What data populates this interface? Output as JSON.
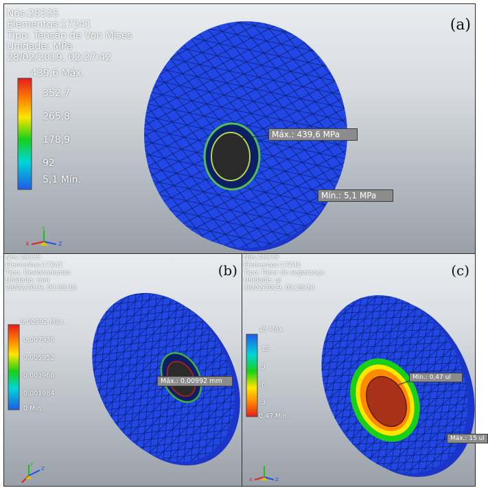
{
  "colors": {
    "mesh_blue": "#1f3fdc",
    "legend_gradient": [
      "#e81c1c",
      "#ff8a00",
      "#ffe600",
      "#18d018",
      "#00d6d6",
      "#1f5be8"
    ]
  },
  "panels": [
    {
      "tag": "(a)",
      "info": [
        "Nós:28335",
        "Elementos:17241",
        "Tipo: Tensão de Von Mises",
        "Unidade: MPa",
        "28/02/2019, 02:27:42"
      ],
      "legend": [
        "439,6 Máx.",
        "352,7",
        "265,8",
        "178,9",
        "92",
        "5,1 Mín."
      ],
      "callouts": {
        "max": "Máx.: 439,6 MPa",
        "min": "Mín.: 5,1 MPa"
      },
      "icons": [
        "triad-icon"
      ]
    },
    {
      "tag": "(b)",
      "info": [
        "Nós:28335",
        "Elementos:17241",
        "Tipo: Deslocamento",
        "Unidade: mm",
        "28/02/2019, 02:28:18"
      ],
      "legend": [
        "0,00992 Máx.",
        "0,007936",
        "0,005952",
        "0,003968",
        "0,001984",
        "0 Mín."
      ],
      "callouts": {
        "max": "Máx.: 0,00992 mm"
      },
      "icons": [
        "triad-icon"
      ]
    },
    {
      "tag": "(c)",
      "info": [
        "Nós:28335",
        "Elementos:17241",
        "Tipo: Fator de segurança",
        "Unidade: ul",
        "28/02/2019, 02:28:14"
      ],
      "legend": [
        "15 Máx.",
        "12",
        "9",
        "6",
        "3",
        "0,47 Mín."
      ],
      "callouts": {
        "min": "Mín.: 0,47 ul",
        "max": "Máx.: 15 ul"
      },
      "icons": [
        "triad-icon"
      ]
    }
  ]
}
